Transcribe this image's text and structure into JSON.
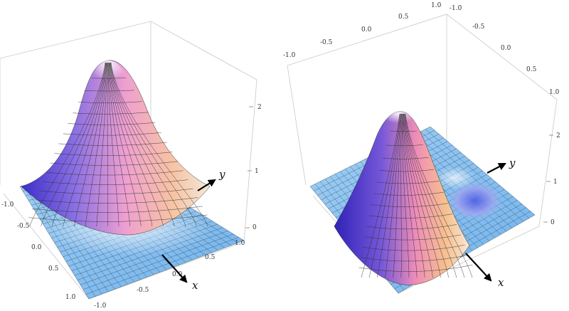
{
  "panels": [
    {
      "id": "left",
      "surface": "single-peak",
      "axis_x_label": "x",
      "axis_y_label": "y",
      "z_ticks": [
        "0",
        "1",
        "2"
      ],
      "ticks_left": [
        "-1.0",
        "-0.5",
        "0.0",
        "0.5",
        "1.0"
      ],
      "ticks_bottom": [
        "-1.0",
        "-0.5",
        "0.0",
        "0.5",
        "1.0"
      ]
    },
    {
      "id": "right",
      "surface": "ridge-with-depression",
      "axis_x_label": "x",
      "axis_y_label": "y",
      "z_ticks": [
        "0",
        "1",
        "2"
      ],
      "ticks_top_front": [
        "-1.0",
        "-0.5",
        "0.0",
        "0.5",
        "1.0"
      ],
      "ticks_top_right": [
        "-1.0",
        "-0.5",
        "0.0",
        "0.5",
        "1.0"
      ]
    }
  ],
  "colors": {
    "base_blue": "#86bff0",
    "peak_pink": "#ef9ccb",
    "peak_orange": "#f6c79a",
    "shadow_violet": "#5a4fd6",
    "box_line": "#c9c9c9"
  }
}
